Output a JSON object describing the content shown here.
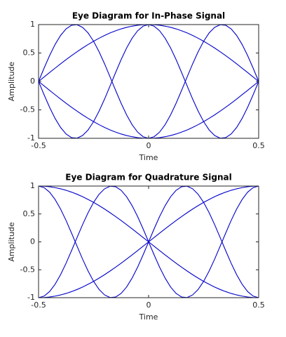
{
  "chart_data": [
    {
      "type": "line",
      "title": "Eye Diagram for In-Phase Signal",
      "xlabel": "Time",
      "ylabel": "Amplitude",
      "x": [
        -0.5,
        -0.475,
        -0.45,
        -0.425,
        -0.4,
        -0.375,
        -0.35,
        -0.325,
        -0.3,
        -0.275,
        -0.25,
        -0.225,
        -0.2,
        -0.175,
        -0.15,
        -0.125,
        -0.1,
        -0.075,
        -0.05,
        -0.025,
        0,
        0.025,
        0.05,
        0.075,
        0.1,
        0.125,
        0.15,
        0.175,
        0.2,
        0.225,
        0.25,
        0.275,
        0.3,
        0.325,
        0.35,
        0.375,
        0.4,
        0.425,
        0.45,
        0.475,
        0.5
      ],
      "series": [
        {
          "color": "#0000cc",
          "values": [
            0,
            0.078,
            0.156,
            0.233,
            0.309,
            0.383,
            0.454,
            0.522,
            0.588,
            0.649,
            0.707,
            0.76,
            0.809,
            0.853,
            0.891,
            0.924,
            0.951,
            0.972,
            0.988,
            0.997,
            1,
            0.997,
            0.988,
            0.972,
            0.951,
            0.924,
            0.891,
            0.853,
            0.809,
            0.76,
            0.707,
            0.649,
            0.588,
            0.522,
            0.454,
            0.383,
            0.309,
            0.233,
            0.156,
            0.078,
            0
          ]
        },
        {
          "color": "#0000cc",
          "values": [
            0,
            -0.078,
            -0.156,
            -0.233,
            -0.309,
            -0.383,
            -0.454,
            -0.522,
            -0.588,
            -0.649,
            -0.707,
            -0.76,
            -0.809,
            -0.853,
            -0.891,
            -0.924,
            -0.951,
            -0.972,
            -0.988,
            -0.997,
            -1,
            -0.997,
            -0.988,
            -0.972,
            -0.951,
            -0.924,
            -0.891,
            -0.853,
            -0.809,
            -0.76,
            -0.707,
            -0.649,
            -0.588,
            -0.522,
            -0.454,
            -0.383,
            -0.309,
            -0.233,
            -0.156,
            -0.078,
            0
          ]
        },
        {
          "color": "#0000cc",
          "values": [
            0,
            -0.233,
            -0.454,
            -0.649,
            -0.809,
            -0.924,
            -0.988,
            -0.997,
            -0.951,
            -0.853,
            -0.707,
            -0.522,
            -0.309,
            -0.078,
            0.156,
            0.383,
            0.588,
            0.76,
            0.891,
            0.972,
            1,
            0.972,
            0.891,
            0.76,
            0.588,
            0.383,
            0.156,
            -0.078,
            -0.309,
            -0.522,
            -0.707,
            -0.853,
            -0.951,
            -0.997,
            -0.988,
            -0.924,
            -0.809,
            -0.649,
            -0.454,
            -0.233,
            0
          ]
        },
        {
          "color": "#0000cc",
          "values": [
            0,
            0.233,
            0.454,
            0.649,
            0.809,
            0.924,
            0.988,
            0.997,
            0.951,
            0.853,
            0.707,
            0.522,
            0.309,
            0.078,
            -0.156,
            -0.383,
            -0.588,
            -0.76,
            -0.891,
            -0.972,
            -1,
            -0.972,
            -0.891,
            -0.76,
            -0.588,
            -0.383,
            -0.156,
            0.078,
            0.309,
            0.522,
            0.707,
            0.853,
            0.951,
            0.997,
            0.988,
            0.924,
            0.809,
            0.649,
            0.454,
            0.233,
            0
          ]
        }
      ],
      "xlim": [
        -0.5,
        0.5
      ],
      "xticks": [
        -0.5,
        0,
        0.5
      ],
      "ylim": [
        -1,
        1
      ],
      "yticks": [
        -1,
        -0.5,
        0,
        0.5,
        1
      ],
      "grid": false
    },
    {
      "type": "line",
      "title": "Eye Diagram for Quadrature Signal",
      "xlabel": "Time",
      "ylabel": "Amplitude",
      "x": [
        -0.5,
        -0.475,
        -0.45,
        -0.425,
        -0.4,
        -0.375,
        -0.35,
        -0.325,
        -0.3,
        -0.275,
        -0.25,
        -0.225,
        -0.2,
        -0.175,
        -0.15,
        -0.125,
        -0.1,
        -0.075,
        -0.05,
        -0.025,
        0,
        0.025,
        0.05,
        0.075,
        0.1,
        0.125,
        0.15,
        0.175,
        0.2,
        0.225,
        0.25,
        0.275,
        0.3,
        0.325,
        0.35,
        0.375,
        0.4,
        0.425,
        0.45,
        0.475,
        0.5
      ],
      "series": [
        {
          "color": "#0000cc",
          "values": [
            1,
            0.997,
            0.988,
            0.972,
            0.951,
            0.924,
            0.891,
            0.853,
            0.809,
            0.76,
            0.707,
            0.649,
            0.588,
            0.522,
            0.454,
            0.383,
            0.309,
            0.233,
            0.156,
            0.078,
            0,
            -0.078,
            -0.156,
            -0.233,
            -0.309,
            -0.383,
            -0.454,
            -0.522,
            -0.588,
            -0.649,
            -0.707,
            -0.76,
            -0.809,
            -0.853,
            -0.891,
            -0.924,
            -0.951,
            -0.972,
            -0.988,
            -0.997,
            -1
          ]
        },
        {
          "color": "#0000cc",
          "values": [
            -1,
            -0.997,
            -0.988,
            -0.972,
            -0.951,
            -0.924,
            -0.891,
            -0.853,
            -0.809,
            -0.76,
            -0.707,
            -0.649,
            -0.588,
            -0.522,
            -0.454,
            -0.383,
            -0.309,
            -0.233,
            -0.156,
            -0.078,
            0,
            0.078,
            0.156,
            0.233,
            0.309,
            0.383,
            0.454,
            0.522,
            0.588,
            0.649,
            0.707,
            0.76,
            0.809,
            0.853,
            0.891,
            0.924,
            0.951,
            0.972,
            0.988,
            0.997,
            1
          ]
        },
        {
          "color": "#0000cc",
          "values": [
            1,
            0.972,
            0.891,
            0.76,
            0.588,
            0.383,
            0.156,
            -0.078,
            -0.309,
            -0.522,
            -0.707,
            -0.853,
            -0.951,
            -0.997,
            -0.988,
            -0.924,
            -0.809,
            -0.649,
            -0.454,
            -0.233,
            0,
            0.233,
            0.454,
            0.649,
            0.809,
            0.924,
            0.988,
            0.997,
            0.951,
            0.853,
            0.707,
            0.522,
            0.309,
            0.078,
            -0.156,
            -0.383,
            -0.588,
            -0.76,
            -0.891,
            -0.972,
            -1
          ]
        },
        {
          "color": "#0000cc",
          "values": [
            -1,
            -0.972,
            -0.891,
            -0.76,
            -0.588,
            -0.383,
            -0.156,
            0.078,
            0.309,
            0.522,
            0.707,
            0.853,
            0.951,
            0.997,
            0.988,
            0.924,
            0.809,
            0.649,
            0.454,
            0.233,
            0,
            -0.233,
            -0.454,
            -0.649,
            -0.809,
            -0.924,
            -0.988,
            -0.997,
            -0.951,
            -0.853,
            -0.707,
            -0.522,
            -0.309,
            -0.078,
            0.156,
            0.383,
            0.588,
            0.76,
            0.891,
            0.972,
            1
          ]
        }
      ],
      "xlim": [
        -0.5,
        0.5
      ],
      "xticks": [
        -0.5,
        0,
        0.5
      ],
      "ylim": [
        -1,
        1
      ],
      "yticks": [
        -1,
        -0.5,
        0,
        0.5,
        1
      ],
      "grid": false
    }
  ]
}
